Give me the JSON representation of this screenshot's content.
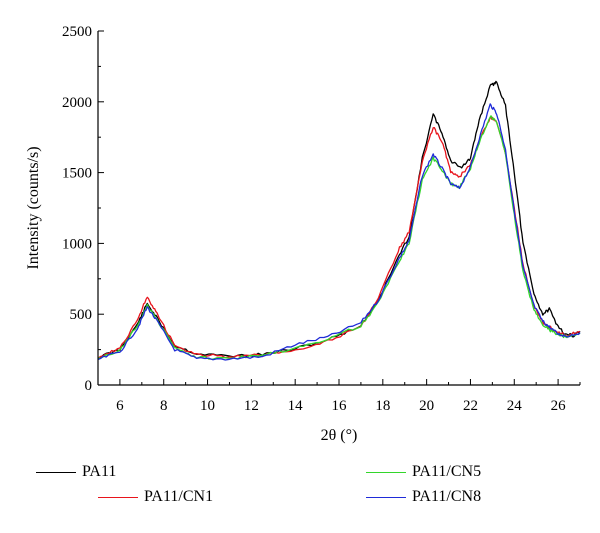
{
  "chart_data": {
    "type": "line",
    "xlabel": "2θ (°)",
    "ylabel": "Intensity (counts/s)",
    "xlim": [
      5,
      27
    ],
    "ylim": [
      0,
      2500
    ],
    "xticks": [
      6,
      8,
      10,
      12,
      14,
      16,
      18,
      20,
      22,
      24,
      26
    ],
    "yticks": [
      0,
      500,
      1000,
      1500,
      2000,
      2500
    ],
    "grid": false,
    "legend_position": "bottom",
    "series": [
      {
        "name": "PA11",
        "color": "#000000",
        "points": [
          [
            5,
            195
          ],
          [
            6,
            250
          ],
          [
            6.8,
            430
          ],
          [
            7.25,
            575
          ],
          [
            7.7,
            470
          ],
          [
            8.5,
            280
          ],
          [
            9.5,
            220
          ],
          [
            11,
            205
          ],
          [
            12.5,
            215
          ],
          [
            14,
            255
          ],
          [
            15.5,
            320
          ],
          [
            17,
            420
          ],
          [
            17.8,
            600
          ],
          [
            18.7,
            900
          ],
          [
            19.2,
            1050
          ],
          [
            19.8,
            1600
          ],
          [
            20.3,
            1910
          ],
          [
            20.7,
            1780
          ],
          [
            21.1,
            1580
          ],
          [
            21.6,
            1540
          ],
          [
            22,
            1600
          ],
          [
            22.4,
            1870
          ],
          [
            22.9,
            2110
          ],
          [
            23.2,
            2140
          ],
          [
            23.6,
            1970
          ],
          [
            24,
            1500
          ],
          [
            24.4,
            1000
          ],
          [
            24.9,
            640
          ],
          [
            25.3,
            500
          ],
          [
            25.6,
            535
          ],
          [
            25.9,
            440
          ],
          [
            26.3,
            360
          ],
          [
            26.7,
            350
          ],
          [
            27,
            380
          ]
        ]
      },
      {
        "name": "PA11/CN1",
        "color": "#e8141c",
        "points": [
          [
            5,
            200
          ],
          [
            6,
            260
          ],
          [
            6.8,
            460
          ],
          [
            7.25,
            625
          ],
          [
            7.7,
            500
          ],
          [
            8.5,
            280
          ],
          [
            9.5,
            215
          ],
          [
            11,
            200
          ],
          [
            12.5,
            210
          ],
          [
            14,
            250
          ],
          [
            15.5,
            310
          ],
          [
            17,
            410
          ],
          [
            17.8,
            610
          ],
          [
            18.7,
            950
          ],
          [
            19.2,
            1080
          ],
          [
            19.8,
            1580
          ],
          [
            20.3,
            1820
          ],
          [
            20.7,
            1720
          ],
          [
            21.1,
            1510
          ],
          [
            21.5,
            1470
          ],
          [
            22,
            1560
          ],
          [
            22.4,
            1720
          ],
          [
            22.9,
            1890
          ],
          [
            23.2,
            1860
          ],
          [
            23.6,
            1640
          ],
          [
            24,
            1250
          ],
          [
            24.4,
            850
          ],
          [
            24.9,
            560
          ],
          [
            25.3,
            440
          ],
          [
            25.6,
            410
          ],
          [
            26,
            370
          ],
          [
            26.4,
            350
          ],
          [
            27,
            375
          ]
        ]
      },
      {
        "name": "PA11/CN5",
        "color": "#33d62b",
        "points": [
          [
            5,
            185
          ],
          [
            6,
            240
          ],
          [
            6.8,
            420
          ],
          [
            7.25,
            560
          ],
          [
            7.7,
            460
          ],
          [
            8.5,
            260
          ],
          [
            9.5,
            195
          ],
          [
            11,
            190
          ],
          [
            12.5,
            205
          ],
          [
            14,
            265
          ],
          [
            15.5,
            325
          ],
          [
            17,
            420
          ],
          [
            17.8,
            580
          ],
          [
            18.7,
            860
          ],
          [
            19.2,
            1000
          ],
          [
            19.8,
            1450
          ],
          [
            20.3,
            1600
          ],
          [
            20.7,
            1520
          ],
          [
            21.1,
            1420
          ],
          [
            21.5,
            1400
          ],
          [
            22,
            1530
          ],
          [
            22.4,
            1710
          ],
          [
            22.9,
            1900
          ],
          [
            23.2,
            1860
          ],
          [
            23.6,
            1630
          ],
          [
            24,
            1200
          ],
          [
            24.4,
            800
          ],
          [
            24.9,
            530
          ],
          [
            25.3,
            430
          ],
          [
            25.6,
            390
          ],
          [
            26,
            355
          ],
          [
            26.4,
            340
          ],
          [
            27,
            365
          ]
        ]
      },
      {
        "name": "PA11/CN8",
        "color": "#1f2bd8",
        "points": [
          [
            5,
            180
          ],
          [
            6,
            235
          ],
          [
            6.8,
            400
          ],
          [
            7.25,
            550
          ],
          [
            7.7,
            450
          ],
          [
            8.5,
            250
          ],
          [
            9.5,
            185
          ],
          [
            11,
            185
          ],
          [
            12.5,
            200
          ],
          [
            14,
            285
          ],
          [
            15.5,
            340
          ],
          [
            17,
            440
          ],
          [
            17.8,
            600
          ],
          [
            18.7,
            880
          ],
          [
            19.2,
            1020
          ],
          [
            19.8,
            1480
          ],
          [
            20.3,
            1630
          ],
          [
            20.7,
            1530
          ],
          [
            21.1,
            1420
          ],
          [
            21.5,
            1390
          ],
          [
            22,
            1540
          ],
          [
            22.4,
            1740
          ],
          [
            22.9,
            1980
          ],
          [
            23.2,
            1920
          ],
          [
            23.6,
            1660
          ],
          [
            24,
            1230
          ],
          [
            24.4,
            830
          ],
          [
            24.9,
            560
          ],
          [
            25.3,
            450
          ],
          [
            25.6,
            410
          ],
          [
            26,
            360
          ],
          [
            26.4,
            345
          ],
          [
            27,
            370
          ]
        ]
      }
    ]
  }
}
